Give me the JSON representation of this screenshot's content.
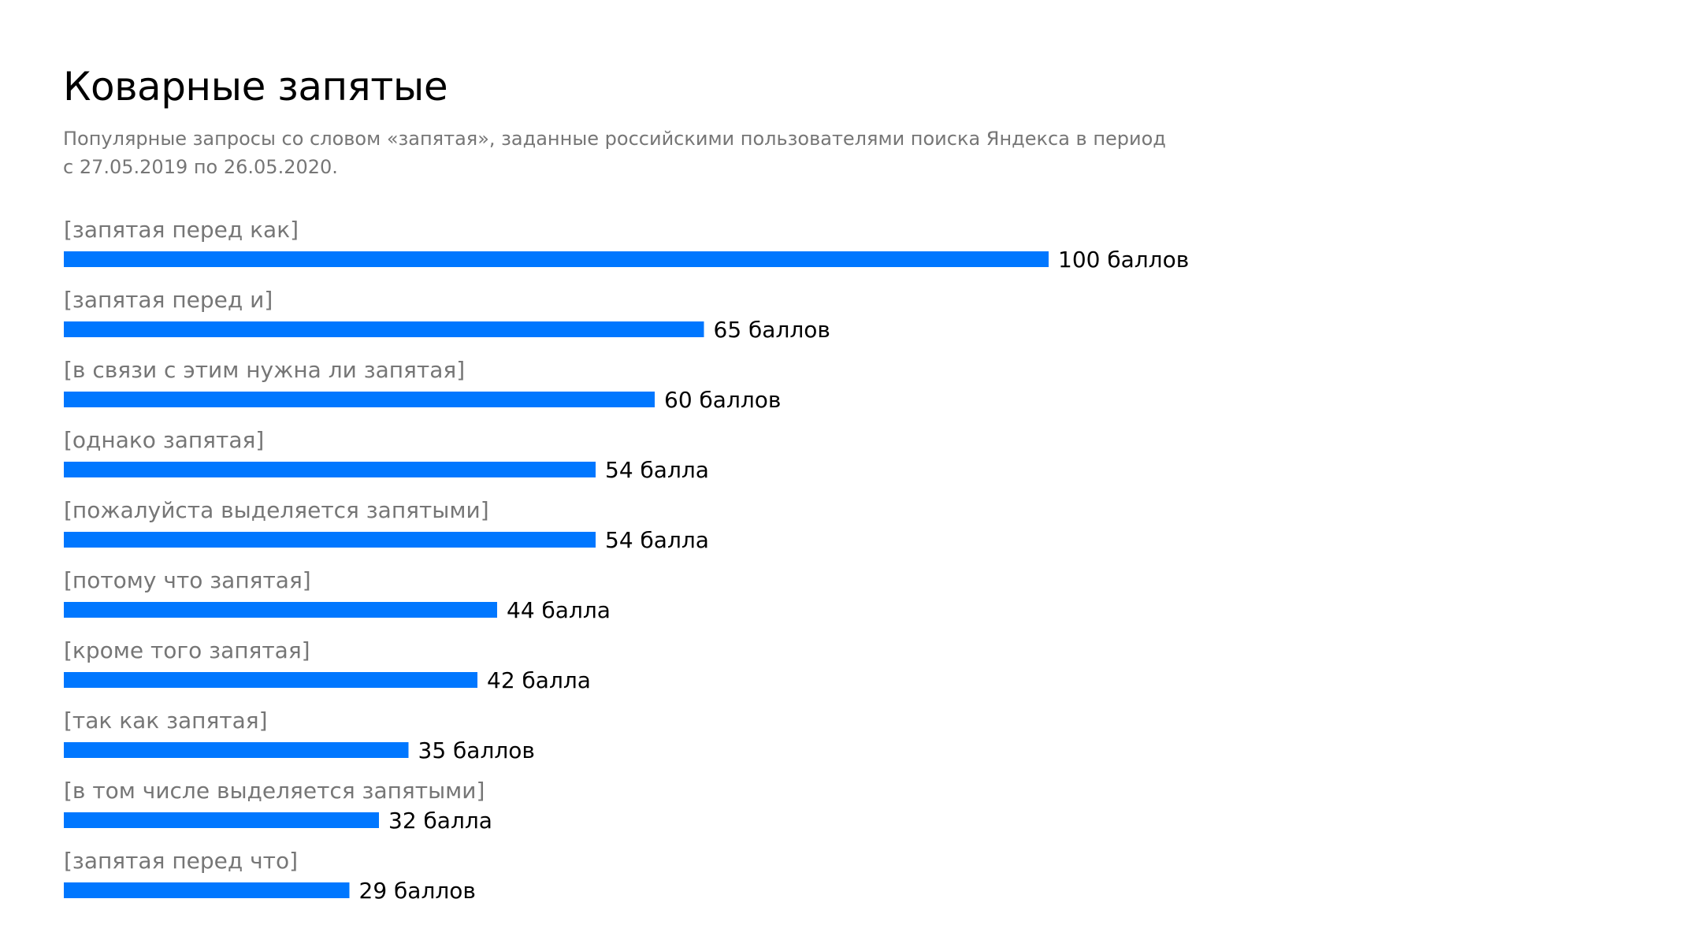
{
  "header": {
    "title": "Коварные запятые",
    "subtitle_lines": [
      "Популярные запросы со словом «запятая», заданные российскими пользователями поиска Яндекса в период",
      "с 27.05.2019 по 26.05.2020."
    ]
  },
  "colors": {
    "bar": "#0077ff",
    "category_text": "#767676",
    "value_text": "#000000"
  },
  "chart_data": {
    "type": "bar",
    "orientation": "horizontal",
    "title": "Коварные запятые",
    "xlim": [
      0,
      100
    ],
    "grid": false,
    "legend": "none",
    "categories": [
      "[запятая перед как]",
      "[запятая перед и]",
      "[в связи с этим нужна ли запятая]",
      "[однако запятая]",
      "[пожалуйста выделяется запятыми]",
      "[потому что запятая]",
      "[кроме того запятая]",
      "[так как запятая]",
      "[в том числе выделяется запятыми]",
      "[запятая перед что]"
    ],
    "values": [
      100,
      65,
      60,
      54,
      54,
      44,
      42,
      35,
      32,
      29
    ],
    "value_labels": [
      "100 баллов",
      "65 баллов",
      "60 баллов",
      "54 балла",
      "54 балла",
      "44 балла",
      "42 балла",
      "35 баллов",
      "32 балла",
      "29 баллов"
    ]
  }
}
